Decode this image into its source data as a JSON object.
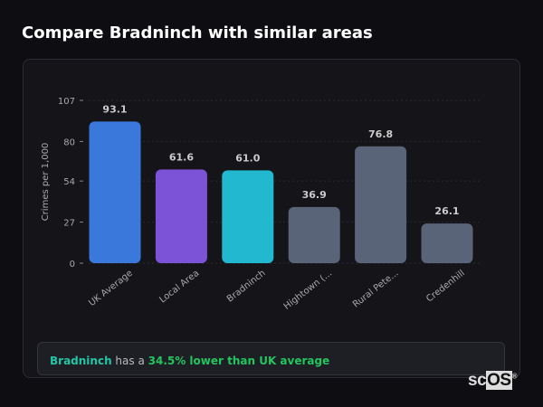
{
  "title": "Compare Bradninch with similar areas",
  "chart_data": {
    "type": "bar",
    "categories": [
      "UK Average",
      "Local Area",
      "Bradninch",
      "Hightown (...",
      "Rural Pete...",
      "Credenhill"
    ],
    "values": [
      93.1,
      61.6,
      61.0,
      36.9,
      76.8,
      26.1
    ],
    "value_labels": [
      "93.1",
      "61.6",
      "61.0",
      "36.9",
      "76.8",
      "26.1"
    ],
    "colors": [
      "#3b78db",
      "#7c52d6",
      "#22b8cf",
      "#5a6478",
      "#5a6478",
      "#5a6478"
    ],
    "ylabel": "Crimes per 1,000",
    "xlabel": "",
    "yticks": [
      0,
      27,
      54,
      80,
      107
    ],
    "ylim": [
      0,
      107
    ],
    "grid": true
  },
  "callout": {
    "area": "Bradninch",
    "middle": " has a ",
    "comparison": "34.5% lower than UK average"
  },
  "logo": {
    "text": "scOS"
  }
}
